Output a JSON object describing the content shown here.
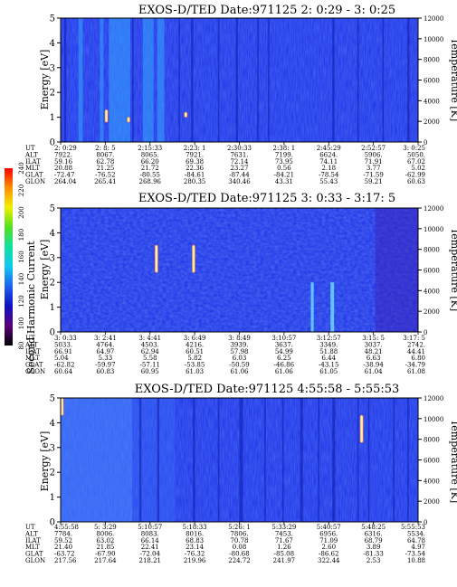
{
  "colors": {
    "background": "#1a2fe6",
    "background_light": "#2a60f5",
    "streak_cyan": "#35a8ff",
    "streak_dark": "#0c1aa8",
    "spike": "#fff2b0"
  },
  "colorbar": {
    "label": "Second Harmonic Current",
    "ticks": [
      "80",
      "100",
      "120",
      "140",
      "160",
      "180",
      "200",
      "220",
      "240"
    ],
    "colors": [
      "#000000",
      "#5a007a",
      "#1010c0",
      "#1e60f0",
      "#10c8f0",
      "#10e0a0",
      "#50e020",
      "#f0f000",
      "#ff9000",
      "#ff0000"
    ]
  },
  "chart_data": [
    {
      "type": "heatmap",
      "title": "EXOS-D/TED   Date:971125  2: 0:29 - 3: 0:25",
      "ylabel": "Energy [eV]",
      "y2label": "Temperature [K]",
      "ylim": [
        0,
        5
      ],
      "y2lim": [
        0,
        12000
      ],
      "yticks": [
        "0",
        "1",
        "2",
        "3",
        "4",
        "5"
      ],
      "y2ticks": [
        "0",
        "2000",
        "4000",
        "6000",
        "8000",
        "10000",
        "12000"
      ],
      "rows": [
        {
          "label": "UT",
          "values": [
            "2: 0:29",
            "2: 8: 5",
            "2:15:33",
            "2:23: 1",
            "2:30:33",
            "2:38: 1",
            "2:45:29",
            "2:52:57",
            "3: 0:25"
          ]
        },
        {
          "label": "ALT",
          "values": [
            "7922.",
            "8067.",
            "8065.",
            "7921.",
            "7631.",
            "7199.",
            "6624.",
            "5906.",
            "5050."
          ]
        },
        {
          "label": "ILAT",
          "values": [
            "59.16",
            "62.78",
            "66.20",
            "69.38",
            "72.14",
            "73.95",
            "74.11",
            "71.91",
            "67.02"
          ]
        },
        {
          "label": "MLT",
          "values": [
            "20.88",
            "21.25",
            "21.72",
            "22.36",
            "23.27",
            "0.56",
            "2.18",
            "3.77",
            "5.02"
          ]
        },
        {
          "label": "GLAT",
          "values": [
            "-72.47",
            "-76.52",
            "-80.55",
            "-84.61",
            "-87.44",
            "-84.21",
            "-78.54",
            "-71.59",
            "-62.99"
          ]
        },
        {
          "label": "GLON",
          "values": [
            "264.04",
            "265.41",
            "268.96",
            "280.35",
            "340.46",
            "43.31",
            "55.43",
            "59.21",
            "60.63"
          ]
        }
      ],
      "streaks": [
        {
          "x": 0.01,
          "width": 0.006,
          "kind": "dark"
        },
        {
          "x": 0.05,
          "width": 0.012,
          "kind": "cyan"
        },
        {
          "x": 0.11,
          "width": 0.01,
          "kind": "cyan"
        },
        {
          "x": 0.135,
          "width": 0.06,
          "kind": "cyan"
        },
        {
          "x": 0.2,
          "width": 0.004,
          "kind": "dark"
        },
        {
          "x": 0.23,
          "width": 0.03,
          "kind": "cyan"
        },
        {
          "x": 0.27,
          "width": 0.02,
          "kind": "cyan"
        },
        {
          "x": 0.33,
          "width": 0.004,
          "kind": "dark"
        },
        {
          "x": 0.365,
          "width": 0.006,
          "kind": "dark"
        },
        {
          "x": 0.44,
          "width": 0.004,
          "kind": "dark"
        },
        {
          "x": 0.49,
          "width": 0.006,
          "kind": "dark"
        },
        {
          "x": 0.55,
          "width": 0.004,
          "kind": "dark"
        },
        {
          "x": 0.58,
          "width": 0.004,
          "kind": "dark"
        },
        {
          "x": 0.76,
          "width": 0.006,
          "kind": "dark"
        },
        {
          "x": 0.83,
          "width": 0.004,
          "kind": "dark"
        },
        {
          "x": 0.9,
          "width": 0.004,
          "kind": "dark"
        },
        {
          "x": 0.97,
          "width": 0.006,
          "kind": "dark"
        }
      ],
      "spikes": [
        {
          "x": 0.128,
          "y0": 0.8,
          "y1": 1.3
        },
        {
          "x": 0.19,
          "y0": 0.8,
          "y1": 1.0
        },
        {
          "x": 0.35,
          "y0": 1.0,
          "y1": 1.2
        }
      ]
    },
    {
      "type": "heatmap",
      "title": "EXOS-D/TED   Date:971125  3: 0:33 - 3:17: 5",
      "ylabel": "Energy [eV]",
      "y2label": "Temperature [K]",
      "ylim": [
        0,
        5
      ],
      "y2lim": [
        0,
        12000
      ],
      "yticks": [
        "0",
        "1",
        "2",
        "3",
        "4",
        "5"
      ],
      "y2ticks": [
        "0",
        "2000",
        "4000",
        "6000",
        "8000",
        "10000",
        "12000"
      ],
      "rows": [
        {
          "label": "UT",
          "values": [
            "3: 0:33",
            "3: 2:41",
            "3: 4:41",
            "3: 6:49",
            "3: 8:49",
            "3:10:57",
            "3:12:57",
            "3:15: 5",
            "3:17: 5"
          ]
        },
        {
          "label": "ALT",
          "values": [
            "5033.",
            "4764.",
            "4503.",
            "4216.",
            "3939.",
            "3637.",
            "3349.",
            "3037.",
            "2742."
          ]
        },
        {
          "label": "ILAT",
          "values": [
            "66.91",
            "64.97",
            "62.94",
            "60.51",
            "57.98",
            "54.99",
            "51.88",
            "48.21",
            "44.41"
          ]
        },
        {
          "label": "MLT",
          "values": [
            "5.04",
            "5.33",
            "5.58",
            "5.82",
            "6.03",
            "6.25",
            "6.44",
            "6.63",
            "6.80"
          ]
        },
        {
          "label": "GLAT",
          "values": [
            "-62.82",
            "-59.97",
            "-57.11",
            "-53.85",
            "-50.59",
            "-46.86",
            "-43.15",
            "-38.94",
            "-34.79"
          ]
        },
        {
          "label": "GLON",
          "values": [
            "60.64",
            "60.83",
            "60.95",
            "61.03",
            "61.06",
            "61.06",
            "61.05",
            "61.04",
            "61.08"
          ]
        }
      ],
      "streaks": [
        {
          "x": 0.7,
          "width": 0.008,
          "kind": "cyan_low"
        },
        {
          "x": 0.755,
          "width": 0.01,
          "kind": "cyan_low"
        },
        {
          "x": 0.88,
          "width": 0.12,
          "kind": "purple"
        }
      ],
      "spikes": [
        {
          "x": 0.268,
          "y0": 2.4,
          "y1": 3.5
        },
        {
          "x": 0.372,
          "y0": 2.4,
          "y1": 3.5
        }
      ]
    },
    {
      "type": "heatmap",
      "title": "EXOS-D/TED   Date:971125  4:55:58 - 5:55:53",
      "ylabel": "Energy [eV]",
      "y2label": "Temperature [K]",
      "ylim": [
        0,
        5
      ],
      "y2lim": [
        0,
        12000
      ],
      "yticks": [
        "0",
        "1",
        "2",
        "3",
        "4",
        "5"
      ],
      "y2ticks": [
        "0",
        "2000",
        "4000",
        "6000",
        "8000",
        "10000",
        "12000"
      ],
      "rows": [
        {
          "label": "UT",
          "values": [
            "4:55:58",
            "5: 3:29",
            "5:10:57",
            "5:18:33",
            "5:26: 1",
            "5:33:29",
            "5:40:57",
            "5:48:25",
            "5:55:53"
          ]
        },
        {
          "label": "ALT",
          "values": [
            "7784.",
            "8006.",
            "8083.",
            "8016.",
            "7806.",
            "7453.",
            "6956.",
            "6316.",
            "5534."
          ]
        },
        {
          "label": "ILAT",
          "values": [
            "59.52",
            "63.02",
            "66.14",
            "68.83",
            "70.78",
            "71.67",
            "71.09",
            "68.79",
            "64.78"
          ]
        },
        {
          "label": "MLT",
          "values": [
            "21.40",
            "21.85",
            "22.41",
            "23.14",
            "0.08",
            "1.26",
            "2.60",
            "3.89",
            "4.97"
          ]
        },
        {
          "label": "GLAT",
          "values": [
            "-63.72",
            "-67.90",
            "-72.04",
            "-76.32",
            "-80.68",
            "-85.08",
            "-86.62",
            "-81.33",
            "-73.54"
          ]
        },
        {
          "label": "GLON",
          "values": [
            "217.56",
            "217.64",
            "218.21",
            "219.96",
            "224.72",
            "241.97",
            "322.44",
            "2.53",
            "10.88"
          ]
        }
      ],
      "streaks": [
        {
          "x": 0.0,
          "width": 0.2,
          "kind": "light"
        },
        {
          "x": 0.2,
          "width": 0.12,
          "kind": "lightish"
        },
        {
          "x": 0.22,
          "width": 0.006,
          "kind": "dark"
        },
        {
          "x": 0.27,
          "width": 0.006,
          "kind": "dark"
        },
        {
          "x": 0.37,
          "width": 0.006,
          "kind": "dark"
        },
        {
          "x": 0.44,
          "width": 0.004,
          "kind": "dark"
        },
        {
          "x": 0.5,
          "width": 0.01,
          "kind": "dark"
        },
        {
          "x": 0.57,
          "width": 0.004,
          "kind": "dark"
        },
        {
          "x": 0.62,
          "width": 0.004,
          "kind": "dark"
        },
        {
          "x": 0.67,
          "width": 0.008,
          "kind": "dark"
        },
        {
          "x": 0.72,
          "width": 0.004,
          "kind": "dark"
        },
        {
          "x": 0.76,
          "width": 0.008,
          "kind": "dark"
        },
        {
          "x": 0.83,
          "width": 0.004,
          "kind": "dark"
        },
        {
          "x": 0.86,
          "width": 0.004,
          "kind": "dark"
        },
        {
          "x": 0.93,
          "width": 0.004,
          "kind": "dark"
        },
        {
          "x": 0.97,
          "width": 0.004,
          "kind": "dark"
        }
      ],
      "spikes": [
        {
          "x": 0.004,
          "y0": 4.3,
          "y1": 5.0
        },
        {
          "x": 0.842,
          "y0": 3.2,
          "y1": 4.3
        }
      ]
    }
  ]
}
